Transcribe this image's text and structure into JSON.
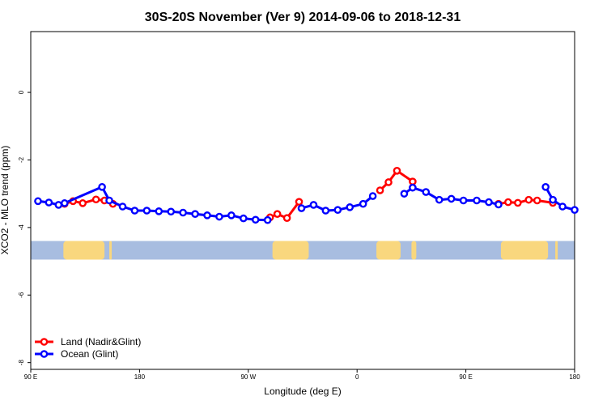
{
  "chart_data": {
    "type": "line",
    "title": "30S-20S November (Ver 9)   2014-09-06 to 2018-12-31",
    "xlabel": "Longitude (deg E)",
    "ylabel": "XCO2 - MLO trend (ppm)",
    "x_ticks": [
      {
        "value": 90,
        "label": "90 E"
      },
      {
        "value": 180,
        "label": "180"
      },
      {
        "value": 270,
        "label": "90 W"
      },
      {
        "value": 360,
        "label": "0"
      },
      {
        "value": 450,
        "label": "90 E"
      },
      {
        "value": 540,
        "label": "180"
      }
    ],
    "y_ticks": [
      0,
      -2,
      -4,
      -6,
      -8
    ],
    "xlim": [
      90,
      540
    ],
    "ylim": [
      -8.2,
      1.8
    ],
    "grid": false,
    "legend_position": "bottom-left",
    "colors": {
      "land": "#ff0000",
      "ocean": "#0000ff",
      "ocean_band": "#a8bde0",
      "land_band": "#f9d77e"
    },
    "landmask_band": {
      "y_top": -4.4,
      "y_bottom": -4.95,
      "land_segments": [
        [
          117,
          151
        ],
        [
          155,
          157
        ],
        [
          290,
          320
        ],
        [
          376,
          396
        ],
        [
          405,
          409
        ],
        [
          479,
          518
        ],
        [
          524,
          526
        ]
      ]
    },
    "series": [
      {
        "name": "Land (Nadir&Glint)",
        "color": "#ff0000",
        "segments": [
          [
            [
              118,
              -3.3
            ],
            [
              125,
              -3.22
            ],
            [
              133,
              -3.28
            ],
            [
              144,
              -3.17
            ],
            [
              151,
              -3.2
            ],
            [
              158,
              -3.3
            ]
          ],
          [
            [
              288,
              -3.7
            ],
            [
              294,
              -3.6
            ],
            [
              302,
              -3.72
            ],
            [
              312,
              -3.24
            ]
          ],
          [
            [
              379,
              -2.9
            ],
            [
              386,
              -2.66
            ],
            [
              393,
              -2.32
            ],
            [
              406,
              -2.64
            ]
          ],
          [
            [
              477,
              -3.3
            ],
            [
              485,
              -3.25
            ],
            [
              493,
              -3.27
            ],
            [
              502,
              -3.18
            ],
            [
              509,
              -3.2
            ],
            [
              522,
              -3.27
            ]
          ]
        ]
      },
      {
        "name": "Ocean (Glint)",
        "color": "#0000ff",
        "segments": [
          [
            [
              96,
              -3.22
            ],
            [
              105,
              -3.26
            ],
            [
              113,
              -3.33
            ],
            [
              118,
              -3.28
            ],
            [
              149,
              -2.8
            ],
            [
              155,
              -3.2
            ],
            [
              166,
              -3.38
            ],
            [
              176,
              -3.5
            ],
            [
              186,
              -3.5
            ],
            [
              196,
              -3.52
            ],
            [
              206,
              -3.53
            ],
            [
              216,
              -3.56
            ],
            [
              226,
              -3.6
            ],
            [
              236,
              -3.64
            ],
            [
              246,
              -3.68
            ],
            [
              256,
              -3.64
            ],
            [
              266,
              -3.73
            ],
            [
              276,
              -3.77
            ],
            [
              286,
              -3.78
            ]
          ],
          [
            [
              314,
              -3.43
            ],
            [
              324,
              -3.33
            ],
            [
              334,
              -3.5
            ],
            [
              344,
              -3.48
            ],
            [
              354,
              -3.4
            ],
            [
              365,
              -3.3
            ],
            [
              373,
              -3.07
            ]
          ],
          [
            [
              399,
              -3.0
            ],
            [
              406,
              -2.82
            ],
            [
              417,
              -2.95
            ],
            [
              428,
              -3.18
            ],
            [
              438,
              -3.15
            ],
            [
              448,
              -3.2
            ],
            [
              459,
              -3.2
            ],
            [
              469,
              -3.25
            ],
            [
              477,
              -3.32
            ]
          ],
          [
            [
              516,
              -2.8
            ],
            [
              522,
              -3.18
            ],
            [
              530,
              -3.38
            ],
            [
              540,
              -3.48
            ]
          ]
        ]
      }
    ]
  }
}
